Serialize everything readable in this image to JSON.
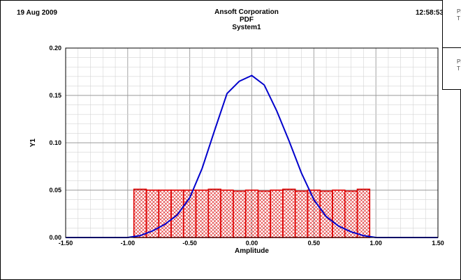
{
  "header": {
    "date": "19 Aug 2009",
    "company": "Ansoft Corporation",
    "plot_title": "PDF",
    "system_name": "System1",
    "time": "12:58:53"
  },
  "legend_fragments": [
    {
      "line1": "Pl",
      "line2": "T"
    },
    {
      "line1": "Pl",
      "line2": "T"
    }
  ],
  "colors": {
    "curve": "#0000cc",
    "histogram": "#dd0000",
    "grid_major": "#999999",
    "grid_minor": "#d4d4d4"
  },
  "chart_data": {
    "type": "line",
    "xlabel": "Amplitude",
    "ylabel": "Y1",
    "xlim": [
      -1.5,
      1.5
    ],
    "ylim": [
      0,
      0.2
    ],
    "x_ticks": [
      "-1.50",
      "-1.00",
      "-0.50",
      "0.00",
      "0.50",
      "1.00",
      "1.50"
    ],
    "y_ticks": [
      "0.00",
      "0.05",
      "0.10",
      "0.15",
      "0.20"
    ],
    "grid": true,
    "series": [
      {
        "kind": "line",
        "x": [
          -1.5,
          -1.2,
          -1.0,
          -0.9,
          -0.8,
          -0.7,
          -0.6,
          -0.5,
          -0.4,
          -0.3,
          -0.2,
          -0.1,
          0.0,
          0.1,
          0.2,
          0.3,
          0.4,
          0.5,
          0.6,
          0.7,
          0.8,
          0.9,
          1.0,
          1.2,
          1.5
        ],
        "y": [
          0.0,
          0.0,
          0.0,
          0.002,
          0.007,
          0.014,
          0.024,
          0.042,
          0.073,
          0.113,
          0.152,
          0.165,
          0.171,
          0.161,
          0.134,
          0.102,
          0.068,
          0.04,
          0.022,
          0.012,
          0.006,
          0.002,
          0.0,
          0.0,
          0.0
        ]
      },
      {
        "kind": "histogram",
        "bin_edges": [
          -0.95,
          -0.85,
          -0.75,
          -0.65,
          -0.55,
          -0.45,
          -0.35,
          -0.25,
          -0.15,
          -0.05,
          0.05,
          0.15,
          0.25,
          0.35,
          0.45,
          0.55,
          0.65,
          0.75,
          0.85,
          0.95
        ],
        "values": [
          0.051,
          0.05,
          0.05,
          0.05,
          0.05,
          0.05,
          0.051,
          0.05,
          0.049,
          0.05,
          0.049,
          0.05,
          0.051,
          0.049,
          0.05,
          0.049,
          0.05,
          0.049,
          0.051
        ]
      }
    ]
  }
}
